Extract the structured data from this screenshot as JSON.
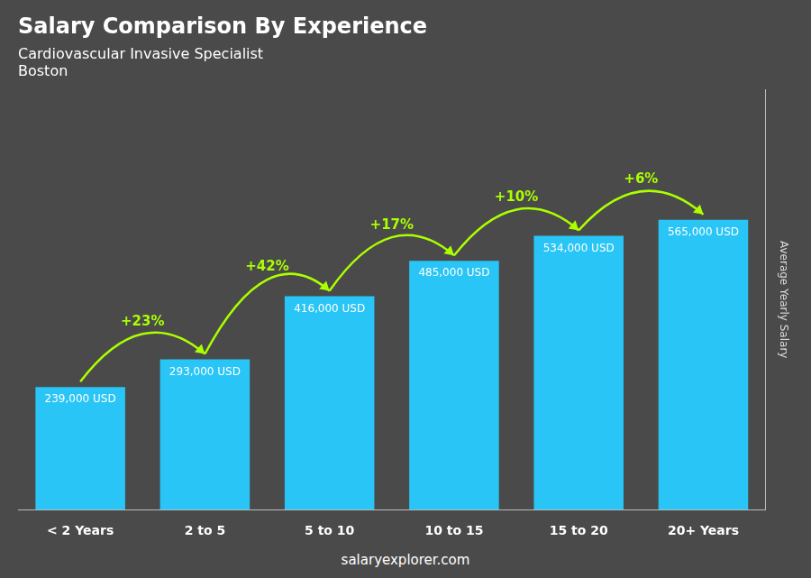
{
  "chart_data": {
    "type": "bar",
    "title": "Salary Comparison By Experience",
    "subtitle": [
      "Cardiovascular Invasive Specialist",
      "Boston"
    ],
    "categories": [
      "< 2 Years",
      "2 to 5",
      "5 to 10",
      "10 to 15",
      "15 to 20",
      "20+ Years"
    ],
    "values": [
      239000,
      293000,
      416000,
      485000,
      534000,
      565000
    ],
    "value_labels": [
      "239,000 USD",
      "293,000 USD",
      "416,000 USD",
      "485,000 USD",
      "534,000 USD",
      "565,000 USD"
    ],
    "data_labels": true,
    "color": "#29C5F6",
    "annotations": [
      "+23%",
      "+42%",
      "+17%",
      "+10%",
      "+6%"
    ],
    "footer": "salaryexplorer.com",
    "ylabel": "Average Yearly Salary",
    "ylim": [
      0,
      819250
    ],
    "tick_labels": "x",
    "grid": false
  }
}
